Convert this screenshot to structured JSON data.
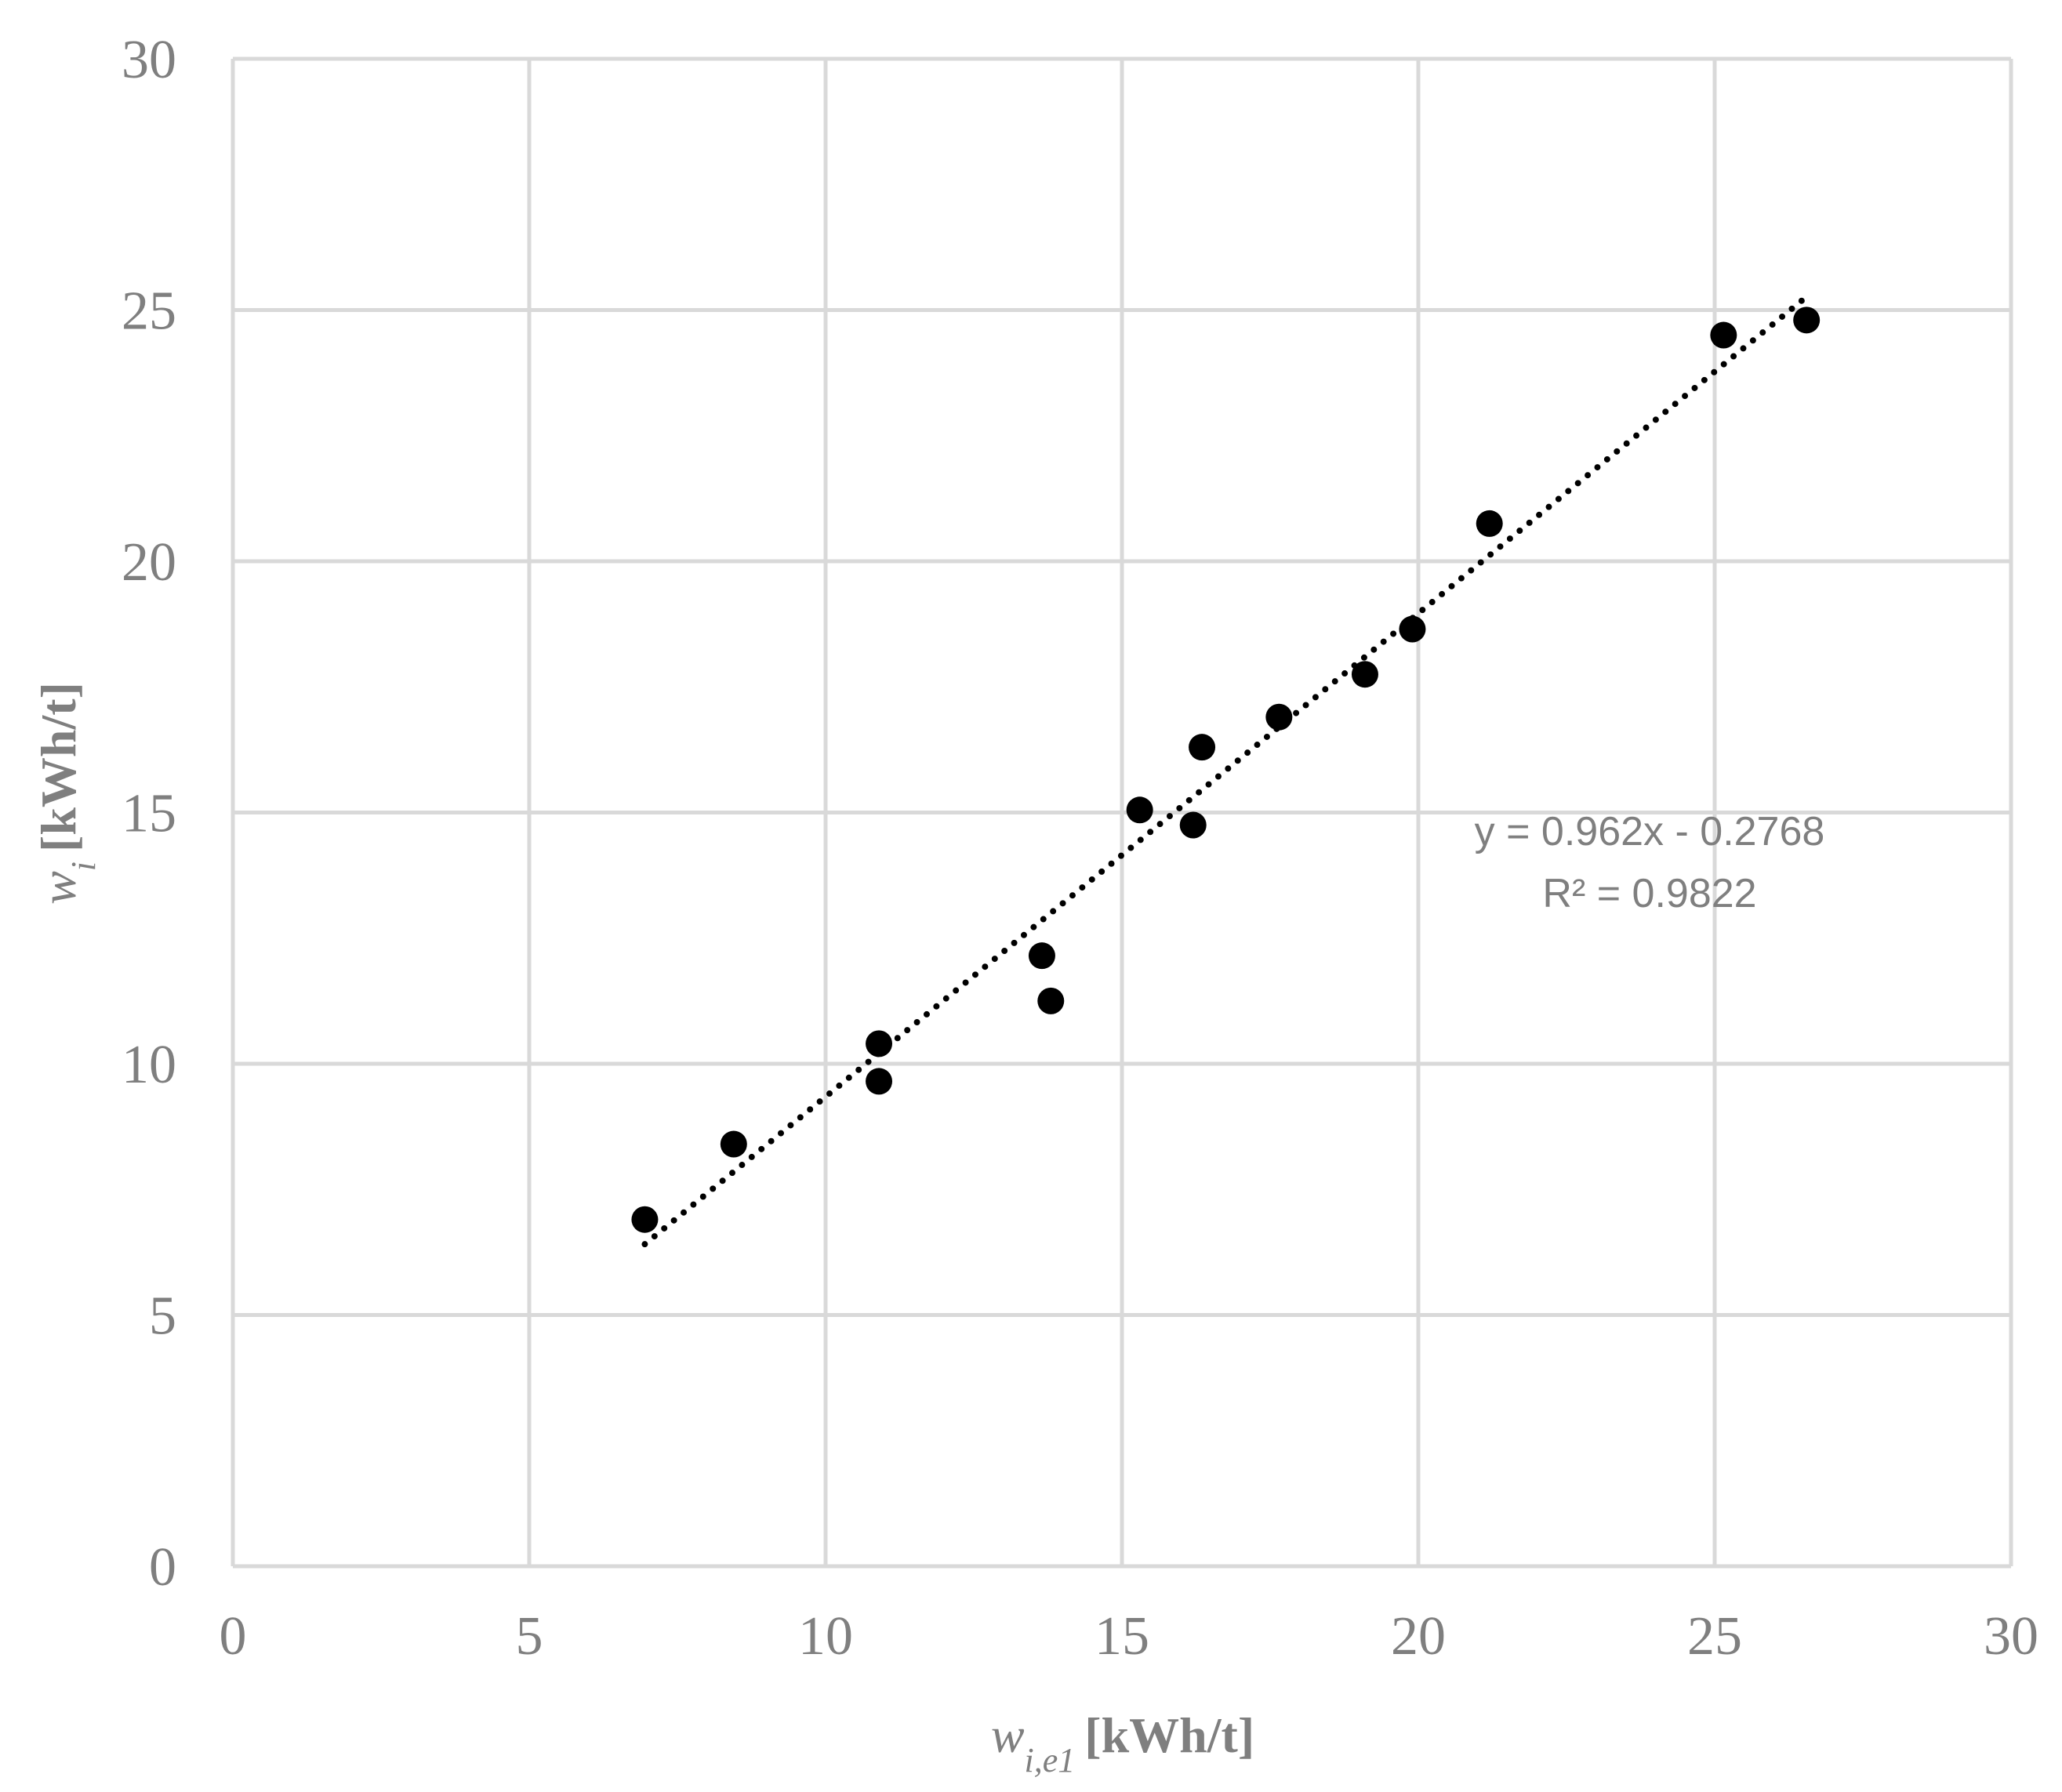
{
  "chart_data": {
    "type": "scatter",
    "xlabel": {
      "var": "w",
      "sub": "i,e1",
      "unit": "[kWh/t]"
    },
    "ylabel": {
      "var": "w",
      "sub": "i",
      "unit": "[kWh/t]"
    },
    "xlim": [
      0,
      30
    ],
    "ylim": [
      0,
      30
    ],
    "xticks": [
      0,
      5,
      10,
      15,
      20,
      25,
      30
    ],
    "yticks": [
      0,
      5,
      10,
      15,
      20,
      25,
      30
    ],
    "grid": true,
    "legend": "none",
    "series": [
      {
        "marker": "circle",
        "color": "#000000",
        "points": [
          {
            "x": 6.95,
            "y": 6.9
          },
          {
            "x": 8.45,
            "y": 8.4
          },
          {
            "x": 10.9,
            "y": 10.4
          },
          {
            "x": 10.9,
            "y": 9.65
          },
          {
            "x": 13.65,
            "y": 12.15
          },
          {
            "x": 13.8,
            "y": 11.25
          },
          {
            "x": 15.3,
            "y": 15.05
          },
          {
            "x": 16.2,
            "y": 14.75
          },
          {
            "x": 16.35,
            "y": 16.3
          },
          {
            "x": 17.65,
            "y": 16.9
          },
          {
            "x": 19.1,
            "y": 17.75
          },
          {
            "x": 19.9,
            "y": 18.65
          },
          {
            "x": 21.2,
            "y": 20.75
          },
          {
            "x": 25.15,
            "y": 24.5
          },
          {
            "x": 26.55,
            "y": 24.8
          }
        ]
      }
    ],
    "trendline": {
      "type": "linear",
      "style": "dotted",
      "color": "#000000",
      "slope": 0.962,
      "intercept": -0.2768,
      "x_range": [
        6.95,
        26.55
      ],
      "equation_text": "y = 0.962x - 0.2768",
      "r2_text": "R² = 0.9822"
    }
  }
}
